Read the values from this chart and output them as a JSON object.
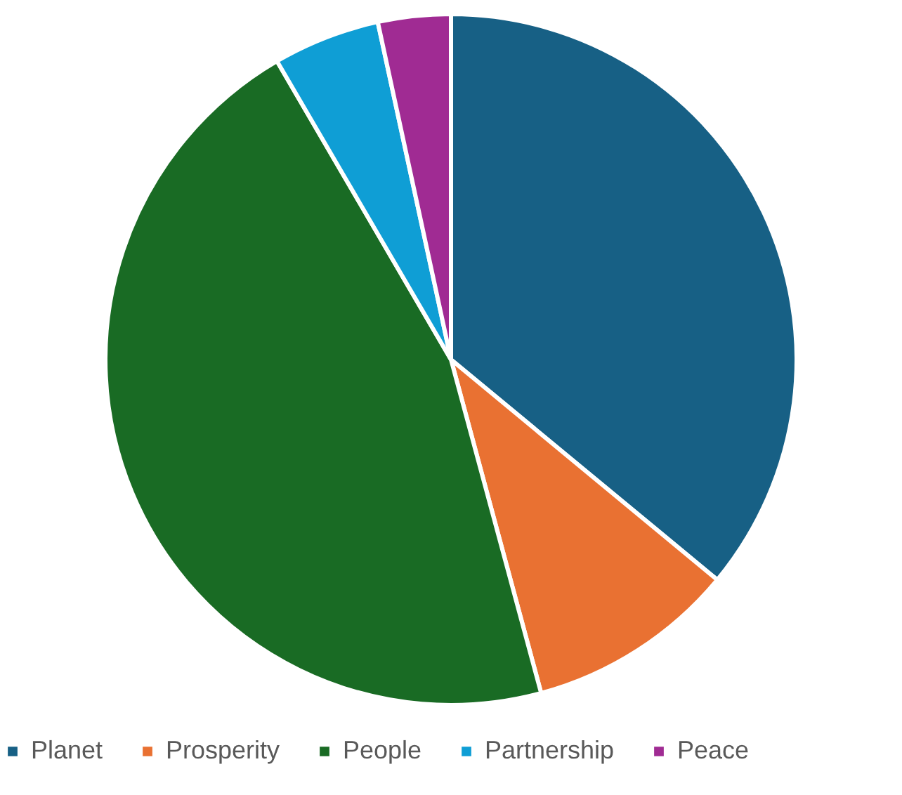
{
  "chart_data": {
    "type": "pie",
    "categories": [
      "Planet",
      "Prosperity",
      "People",
      "Partnership",
      "Peace"
    ],
    "values": [
      36,
      9.8,
      45.8,
      5,
      3.4
    ],
    "colors": [
      "#176085",
      "#e97132",
      "#196b24",
      "#0f9ed5",
      "#a02b93"
    ],
    "legend": "bottom"
  }
}
